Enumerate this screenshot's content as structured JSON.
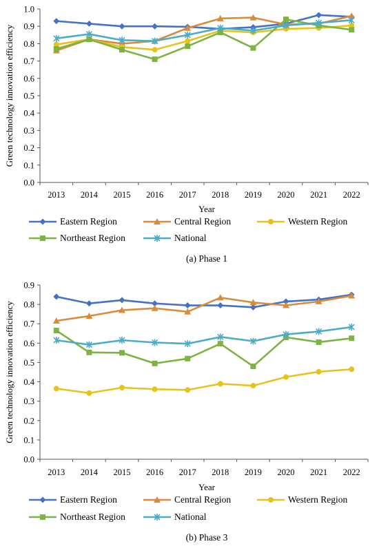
{
  "chart_data": [
    {
      "type": "line",
      "caption": "(a) Phase 1",
      "xlabel": "Year",
      "ylabel": "Green technology innovation efficiency",
      "ylim": [
        0,
        1.0
      ],
      "yticks": [
        "0.0",
        "0.1",
        "0.2",
        "0.3",
        "0.4",
        "0.5",
        "0.6",
        "0.7",
        "0.8",
        "0.9",
        "1.0"
      ],
      "x": [
        "2013",
        "2014",
        "2015",
        "2016",
        "2017",
        "2018",
        "2019",
        "2020",
        "2021",
        "2022"
      ],
      "legend_position": "bottom",
      "series": [
        {
          "name": "Eastern Region",
          "color": "#4472C4",
          "marker": "diamond",
          "values": [
            0.93,
            0.915,
            0.9,
            0.9,
            0.897,
            0.885,
            0.895,
            0.915,
            0.965,
            0.955
          ]
        },
        {
          "name": "Central Region",
          "color": "#D98B3A",
          "marker": "triangle",
          "values": [
            0.76,
            0.825,
            0.8,
            0.815,
            0.89,
            0.945,
            0.95,
            0.91,
            0.915,
            0.96
          ]
        },
        {
          "name": "Western Region",
          "color": "#E8C21C",
          "marker": "circle",
          "values": [
            0.795,
            0.825,
            0.78,
            0.765,
            0.815,
            0.875,
            0.865,
            0.885,
            0.89,
            0.905
          ]
        },
        {
          "name": "Northeast Region",
          "color": "#7CB342",
          "marker": "square",
          "values": [
            0.77,
            0.825,
            0.765,
            0.71,
            0.785,
            0.865,
            0.775,
            0.94,
            0.905,
            0.88
          ]
        },
        {
          "name": "National",
          "color": "#4BACC6",
          "marker": "star",
          "values": [
            0.83,
            0.855,
            0.82,
            0.815,
            0.85,
            0.89,
            0.875,
            0.905,
            0.92,
            0.935
          ]
        }
      ]
    },
    {
      "type": "line",
      "caption": "(b) Phase 3",
      "xlabel": "Year",
      "ylabel": "Green technology innovation efficiency",
      "ylim": [
        0,
        0.9
      ],
      "yticks": [
        "0.0",
        "0.1",
        "0.2",
        "0.3",
        "0.4",
        "0.5",
        "0.6",
        "0.7",
        "0.8",
        "0.9"
      ],
      "x": [
        "2013",
        "2014",
        "2015",
        "2016",
        "2017",
        "2018",
        "2019",
        "2020",
        "2021",
        "2022"
      ],
      "legend_position": "bottom",
      "series": [
        {
          "name": "Eastern Region",
          "color": "#4472C4",
          "marker": "diamond",
          "values": [
            0.84,
            0.805,
            0.822,
            0.805,
            0.795,
            0.795,
            0.785,
            0.815,
            0.825,
            0.85
          ]
        },
        {
          "name": "Central Region",
          "color": "#D98B3A",
          "marker": "triangle",
          "values": [
            0.715,
            0.74,
            0.77,
            0.78,
            0.762,
            0.835,
            0.81,
            0.795,
            0.815,
            0.845
          ]
        },
        {
          "name": "Western Region",
          "color": "#E8C21C",
          "marker": "circle",
          "values": [
            0.365,
            0.342,
            0.37,
            0.362,
            0.358,
            0.39,
            0.38,
            0.425,
            0.452,
            0.465
          ]
        },
        {
          "name": "Northeast Region",
          "color": "#7CB342",
          "marker": "square",
          "values": [
            0.665,
            0.552,
            0.55,
            0.495,
            0.52,
            0.597,
            0.48,
            0.63,
            0.605,
            0.625
          ]
        },
        {
          "name": "National",
          "color": "#4BACC6",
          "marker": "star",
          "values": [
            0.615,
            0.592,
            0.615,
            0.603,
            0.597,
            0.632,
            0.61,
            0.645,
            0.66,
            0.683
          ]
        }
      ]
    }
  ]
}
